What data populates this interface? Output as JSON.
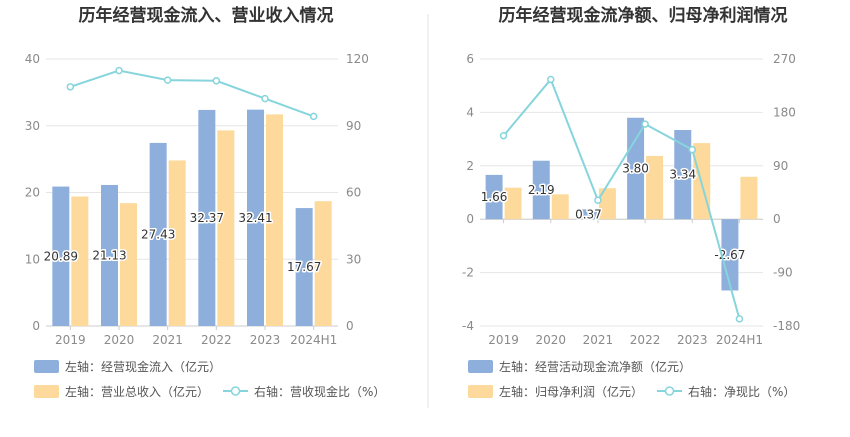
{
  "colors": {
    "bar_primary": "#8eafdc",
    "bar_secondary": "#fdd99b",
    "line": "#86d5dc",
    "grid": "#e6e6e6",
    "axis": "#cccccc",
    "divider": "#e3e3e3"
  },
  "chart_data": [
    {
      "type": "bar",
      "title": "历年经营现金流入、营业收入情况",
      "categories": [
        "2019",
        "2020",
        "2021",
        "2022",
        "2023",
        "2024H1"
      ],
      "y_left": {
        "ticks": [
          0,
          10,
          20,
          30,
          40
        ],
        "range": [
          0,
          40
        ]
      },
      "y_right": {
        "ticks": [
          0,
          30,
          60,
          90,
          120
        ],
        "range": [
          0,
          120
        ]
      },
      "grid": true,
      "legend_position": "bottom-left",
      "series": [
        {
          "name": "左轴：经营现金流入（亿元）",
          "kind": "bar",
          "axis": "left",
          "values": [
            20.89,
            21.13,
            27.43,
            32.37,
            32.41,
            17.67
          ],
          "labels": [
            "20.89",
            "21.13",
            "27.43",
            "32.37",
            "32.41",
            "17.67"
          ]
        },
        {
          "name": "左轴：营业总收入（亿元）",
          "kind": "bar",
          "axis": "left",
          "values": [
            19.4,
            18.4,
            24.8,
            29.3,
            31.7,
            18.7
          ]
        },
        {
          "name": "右轴：营收现金比（%）",
          "kind": "line",
          "axis": "right",
          "values": [
            107.5,
            114.8,
            110.5,
            110.2,
            102.2,
            94.2
          ]
        }
      ]
    },
    {
      "type": "bar",
      "title": "历年经营现金流净额、归母净利润情况",
      "categories": [
        "2019",
        "2020",
        "2021",
        "2022",
        "2023",
        "2024H1"
      ],
      "y_left": {
        "ticks": [
          -4,
          -2,
          0,
          2,
          4,
          6
        ],
        "range": [
          -4,
          6
        ]
      },
      "y_right": {
        "ticks": [
          -180,
          -90,
          0,
          90,
          180,
          270
        ],
        "range": [
          -180,
          270
        ]
      },
      "grid": true,
      "legend_position": "bottom-left",
      "series": [
        {
          "name": "左轴：经营活动现金流净额（亿元）",
          "kind": "bar",
          "axis": "left",
          "values": [
            1.66,
            2.19,
            0.37,
            3.8,
            3.34,
            -2.67
          ],
          "labels": [
            "1.66",
            "2.19",
            "0.37",
            "3.80",
            "3.34",
            "-2.67"
          ]
        },
        {
          "name": "左轴：归母净利润（亿元）",
          "kind": "bar",
          "axis": "left",
          "values": [
            1.18,
            0.93,
            1.16,
            2.37,
            2.85,
            1.59
          ]
        },
        {
          "name": "右轴：净现比（%）",
          "kind": "line",
          "axis": "right",
          "values": [
            140.7,
            235.5,
            31.9,
            160.3,
            117.2,
            -168.0
          ]
        }
      ]
    }
  ]
}
